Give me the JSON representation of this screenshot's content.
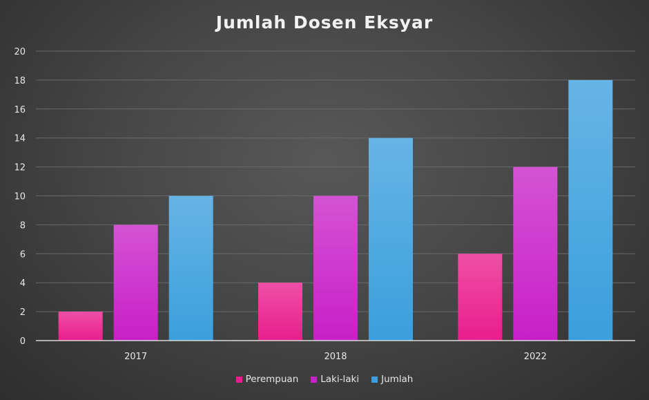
{
  "chart_data": {
    "type": "bar",
    "title": "Jumlah Dosen Eksyar",
    "xlabel": "",
    "ylabel": "",
    "categories": [
      "2017",
      "2018",
      "2022"
    ],
    "series": [
      {
        "name": "Perempuan",
        "values": [
          2,
          4,
          6
        ],
        "color": "#e91e8c",
        "color_light": "#ef4fa6"
      },
      {
        "name": "Laki-laki",
        "values": [
          8,
          10,
          12
        ],
        "color": "#c81fc8",
        "color_light": "#d453d4"
      },
      {
        "name": "Jumlah",
        "values": [
          10,
          14,
          18
        ],
        "color": "#3a9fdc",
        "color_light": "#67b4e6"
      }
    ],
    "ylim": [
      0,
      20
    ],
    "yticks": [
      0,
      2,
      4,
      6,
      8,
      10,
      12,
      14,
      16,
      18,
      20
    ],
    "grid": true,
    "legend_position": "bottom"
  }
}
